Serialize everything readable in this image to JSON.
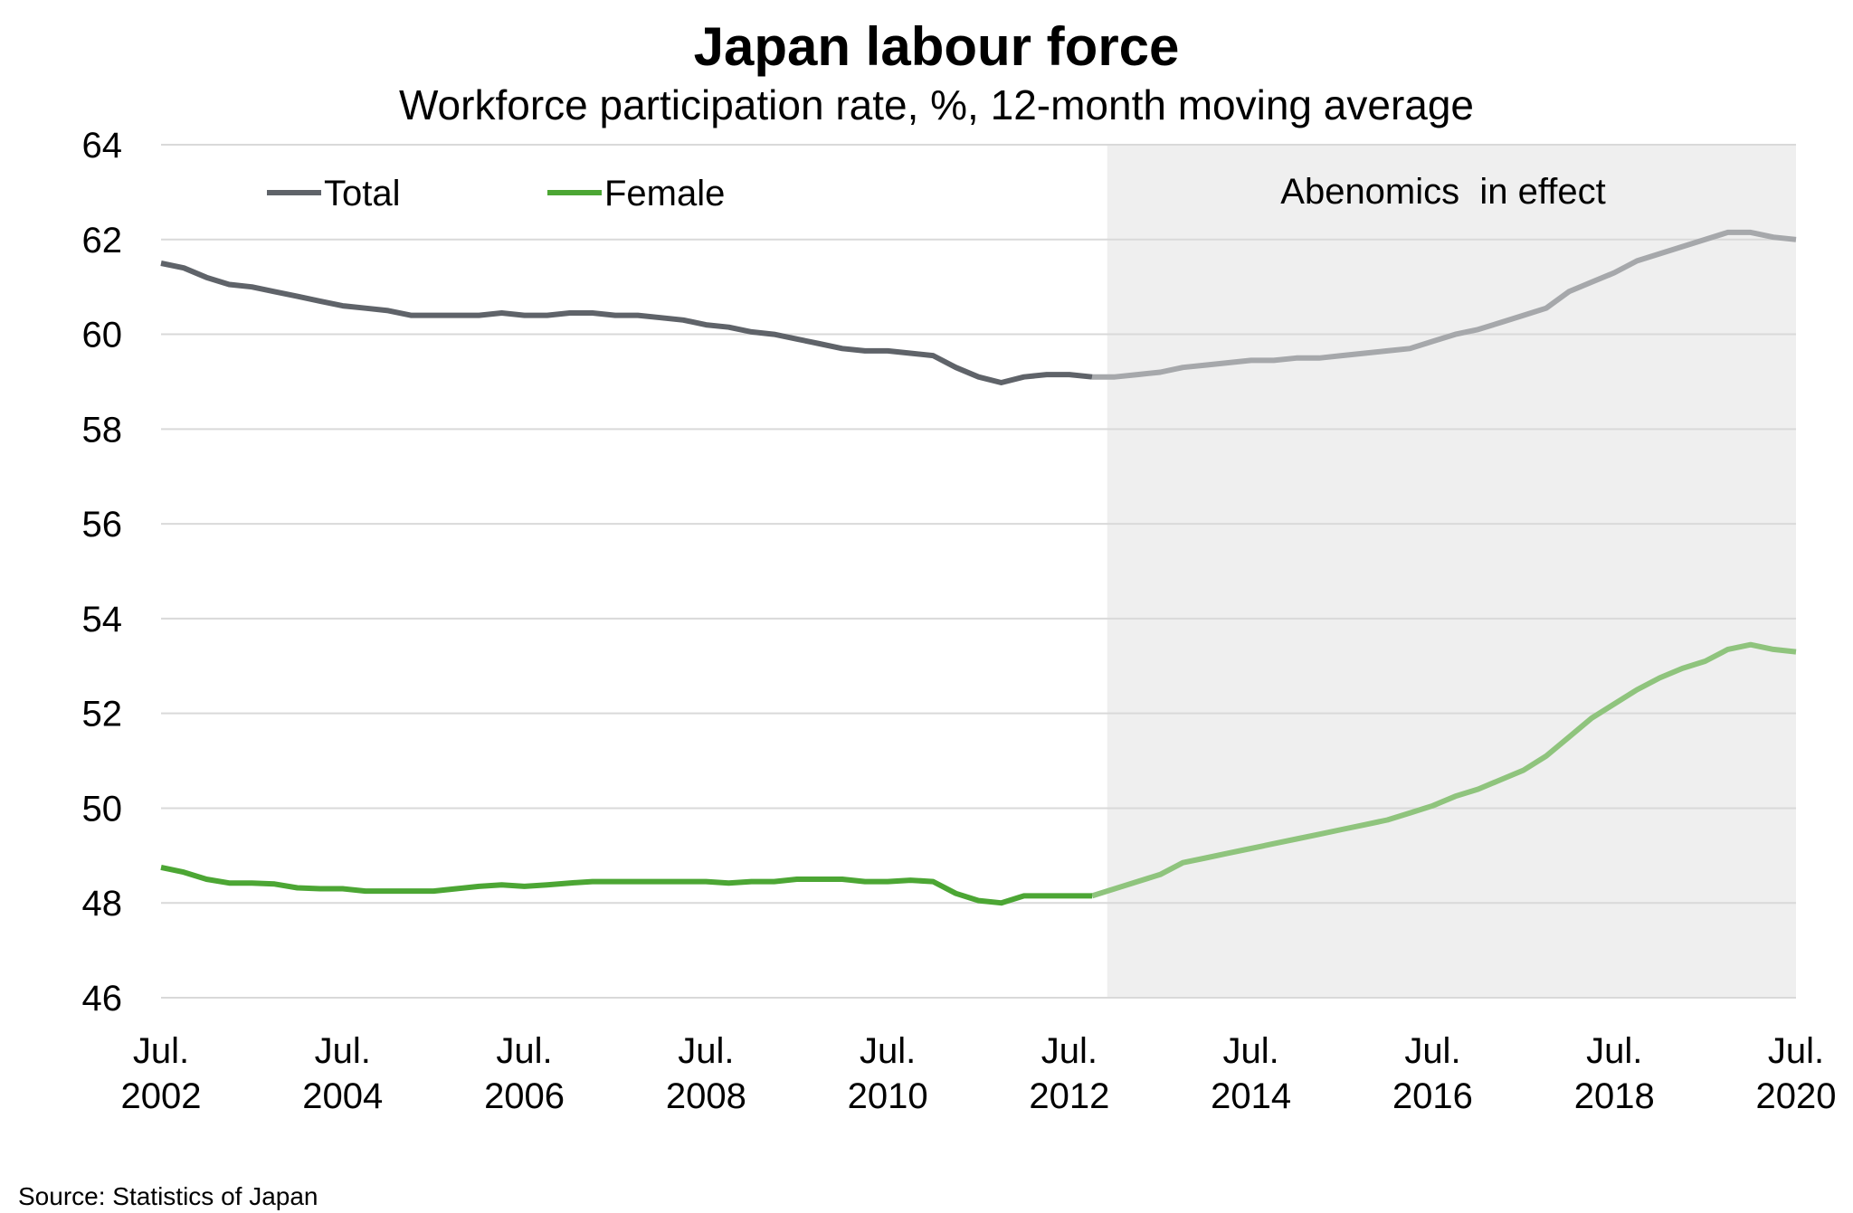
{
  "chart_data": {
    "type": "line",
    "title": "Japan labour force",
    "subtitle": "Workforce participation rate, %, 12-month moving average",
    "xlabel": "",
    "ylabel": "",
    "ylim": [
      46,
      64
    ],
    "yticks": [
      "46",
      "48",
      "50",
      "52",
      "54",
      "56",
      "58",
      "60",
      "62",
      "64"
    ],
    "xlim": [
      "2002-07",
      "2020-07"
    ],
    "xticks": [
      {
        "line1": "Jul.",
        "line2": "2002",
        "date": "2002-07"
      },
      {
        "line1": "Jul.",
        "line2": "2004",
        "date": "2004-07"
      },
      {
        "line1": "Jul.",
        "line2": "2006",
        "date": "2006-07"
      },
      {
        "line1": "Jul.",
        "line2": "2008",
        "date": "2008-07"
      },
      {
        "line1": "Jul.",
        "line2": "2010",
        "date": "2010-07"
      },
      {
        "line1": "Jul.",
        "line2": "2012",
        "date": "2012-07"
      },
      {
        "line1": "Jul.",
        "line2": "2014",
        "date": "2014-07"
      },
      {
        "line1": "Jul.",
        "line2": "2016",
        "date": "2016-07"
      },
      {
        "line1": "Jul.",
        "line2": "2018",
        "date": "2018-07"
      },
      {
        "line1": "Jul.",
        "line2": "2020",
        "date": "2020-07"
      }
    ],
    "grid": "horizontal",
    "legend_position": "top-left",
    "shaded_region": {
      "start": "2012-12",
      "end": "2020-07",
      "label": "Abenomics  in effect"
    },
    "series": [
      {
        "name": "Total",
        "color": "#5f6369",
        "shaded_color": "#a6a8ab",
        "points": [
          [
            "2002-07",
            61.5
          ],
          [
            "2002-10",
            61.4
          ],
          [
            "2003-01",
            61.2
          ],
          [
            "2003-04",
            61.05
          ],
          [
            "2003-07",
            61.0
          ],
          [
            "2003-10",
            60.9
          ],
          [
            "2004-01",
            60.8
          ],
          [
            "2004-04",
            60.7
          ],
          [
            "2004-07",
            60.6
          ],
          [
            "2004-10",
            60.55
          ],
          [
            "2005-01",
            60.5
          ],
          [
            "2005-04",
            60.4
          ],
          [
            "2005-07",
            60.4
          ],
          [
            "2005-10",
            60.4
          ],
          [
            "2006-01",
            60.4
          ],
          [
            "2006-04",
            60.45
          ],
          [
            "2006-07",
            60.4
          ],
          [
            "2006-10",
            60.4
          ],
          [
            "2007-01",
            60.45
          ],
          [
            "2007-04",
            60.45
          ],
          [
            "2007-07",
            60.4
          ],
          [
            "2007-10",
            60.4
          ],
          [
            "2008-01",
            60.35
          ],
          [
            "2008-04",
            60.3
          ],
          [
            "2008-07",
            60.2
          ],
          [
            "2008-10",
            60.15
          ],
          [
            "2009-01",
            60.05
          ],
          [
            "2009-04",
            60.0
          ],
          [
            "2009-07",
            59.9
          ],
          [
            "2009-10",
            59.8
          ],
          [
            "2010-01",
            59.7
          ],
          [
            "2010-04",
            59.65
          ],
          [
            "2010-07",
            59.65
          ],
          [
            "2010-10",
            59.6
          ],
          [
            "2011-01",
            59.55
          ],
          [
            "2011-04",
            59.3
          ],
          [
            "2011-07",
            59.1
          ],
          [
            "2011-10",
            58.98
          ],
          [
            "2012-01",
            59.1
          ],
          [
            "2012-04",
            59.15
          ],
          [
            "2012-07",
            59.15
          ],
          [
            "2012-10",
            59.1
          ],
          [
            "2013-01",
            59.1
          ],
          [
            "2013-04",
            59.15
          ],
          [
            "2013-07",
            59.2
          ],
          [
            "2013-10",
            59.3
          ],
          [
            "2014-01",
            59.35
          ],
          [
            "2014-04",
            59.4
          ],
          [
            "2014-07",
            59.45
          ],
          [
            "2014-10",
            59.45
          ],
          [
            "2015-01",
            59.5
          ],
          [
            "2015-04",
            59.5
          ],
          [
            "2015-07",
            59.55
          ],
          [
            "2015-10",
            59.6
          ],
          [
            "2016-01",
            59.65
          ],
          [
            "2016-04",
            59.7
          ],
          [
            "2016-07",
            59.85
          ],
          [
            "2016-10",
            60.0
          ],
          [
            "2017-01",
            60.1
          ],
          [
            "2017-04",
            60.25
          ],
          [
            "2017-07",
            60.4
          ],
          [
            "2017-10",
            60.55
          ],
          [
            "2018-01",
            60.9
          ],
          [
            "2018-04",
            61.1
          ],
          [
            "2018-07",
            61.3
          ],
          [
            "2018-10",
            61.55
          ],
          [
            "2019-01",
            61.7
          ],
          [
            "2019-04",
            61.85
          ],
          [
            "2019-07",
            62.0
          ],
          [
            "2019-10",
            62.15
          ],
          [
            "2020-01",
            62.15
          ],
          [
            "2020-04",
            62.05
          ],
          [
            "2020-07",
            62.0
          ]
        ]
      },
      {
        "name": "Female",
        "color": "#4ca634",
        "shaded_color": "#8fc47d",
        "points": [
          [
            "2002-07",
            48.75
          ],
          [
            "2002-10",
            48.65
          ],
          [
            "2003-01",
            48.5
          ],
          [
            "2003-04",
            48.42
          ],
          [
            "2003-07",
            48.42
          ],
          [
            "2003-10",
            48.4
          ],
          [
            "2004-01",
            48.32
          ],
          [
            "2004-04",
            48.3
          ],
          [
            "2004-07",
            48.3
          ],
          [
            "2004-10",
            48.25
          ],
          [
            "2005-01",
            48.25
          ],
          [
            "2005-04",
            48.25
          ],
          [
            "2005-07",
            48.25
          ],
          [
            "2005-10",
            48.3
          ],
          [
            "2006-01",
            48.35
          ],
          [
            "2006-04",
            48.38
          ],
          [
            "2006-07",
            48.35
          ],
          [
            "2006-10",
            48.38
          ],
          [
            "2007-01",
            48.42
          ],
          [
            "2007-04",
            48.45
          ],
          [
            "2007-07",
            48.45
          ],
          [
            "2007-10",
            48.45
          ],
          [
            "2008-01",
            48.45
          ],
          [
            "2008-04",
            48.45
          ],
          [
            "2008-07",
            48.45
          ],
          [
            "2008-10",
            48.42
          ],
          [
            "2009-01",
            48.45
          ],
          [
            "2009-04",
            48.45
          ],
          [
            "2009-07",
            48.5
          ],
          [
            "2009-10",
            48.5
          ],
          [
            "2010-01",
            48.5
          ],
          [
            "2010-04",
            48.45
          ],
          [
            "2010-07",
            48.45
          ],
          [
            "2010-10",
            48.48
          ],
          [
            "2011-01",
            48.45
          ],
          [
            "2011-04",
            48.2
          ],
          [
            "2011-07",
            48.05
          ],
          [
            "2011-10",
            48.0
          ],
          [
            "2012-01",
            48.15
          ],
          [
            "2012-04",
            48.15
          ],
          [
            "2012-07",
            48.15
          ],
          [
            "2012-10",
            48.15
          ],
          [
            "2013-01",
            48.3
          ],
          [
            "2013-04",
            48.45
          ],
          [
            "2013-07",
            48.6
          ],
          [
            "2013-10",
            48.85
          ],
          [
            "2014-01",
            48.95
          ],
          [
            "2014-04",
            49.05
          ],
          [
            "2014-07",
            49.15
          ],
          [
            "2014-10",
            49.25
          ],
          [
            "2015-01",
            49.35
          ],
          [
            "2015-04",
            49.45
          ],
          [
            "2015-07",
            49.55
          ],
          [
            "2015-10",
            49.65
          ],
          [
            "2016-01",
            49.75
          ],
          [
            "2016-04",
            49.9
          ],
          [
            "2016-07",
            50.05
          ],
          [
            "2016-10",
            50.25
          ],
          [
            "2017-01",
            50.4
          ],
          [
            "2017-04",
            50.6
          ],
          [
            "2017-07",
            50.8
          ],
          [
            "2017-10",
            51.1
          ],
          [
            "2018-01",
            51.5
          ],
          [
            "2018-04",
            51.9
          ],
          [
            "2018-07",
            52.2
          ],
          [
            "2018-10",
            52.5
          ],
          [
            "2019-01",
            52.75
          ],
          [
            "2019-04",
            52.95
          ],
          [
            "2019-07",
            53.1
          ],
          [
            "2019-10",
            53.35
          ],
          [
            "2020-01",
            53.45
          ],
          [
            "2020-04",
            53.35
          ],
          [
            "2020-07",
            53.3
          ]
        ]
      }
    ]
  },
  "source_note": "Source: Statistics of Japan",
  "colors": {
    "shade_fill": "#efefef",
    "grid": "#d9d9d9",
    "text": "#000000"
  }
}
